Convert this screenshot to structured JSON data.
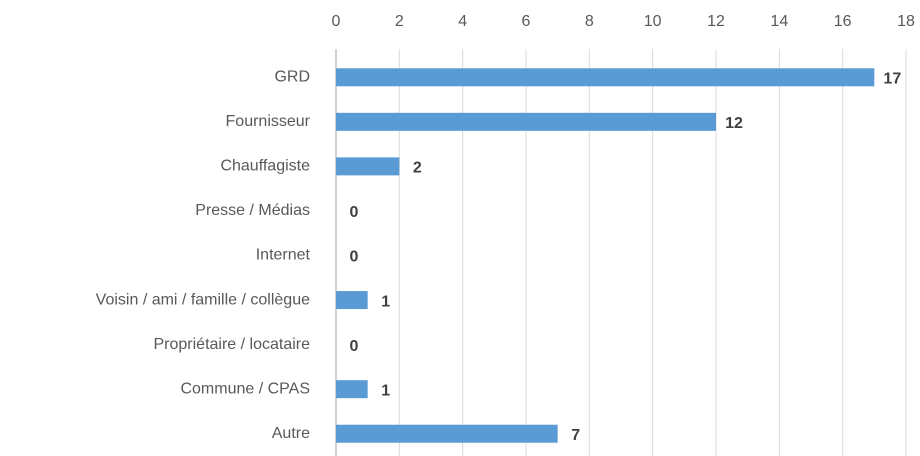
{
  "chart_data": {
    "type": "bar",
    "orientation": "horizontal",
    "categories": [
      "GRD",
      "Fournisseur",
      "Chauffagiste",
      "Presse / Médias",
      "Internet",
      "Voisin / ami / famille / collègue",
      "Propriétaire / locataire",
      "Commune / CPAS",
      "Autre"
    ],
    "values": [
      17,
      12,
      2,
      0,
      0,
      1,
      0,
      1,
      7
    ],
    "color": "#5b9bd5",
    "xlim": [
      0,
      18
    ],
    "xticks": [
      0,
      2,
      4,
      6,
      8,
      10,
      12,
      14,
      16,
      18
    ],
    "grid": true,
    "x_axis_position": "top"
  }
}
